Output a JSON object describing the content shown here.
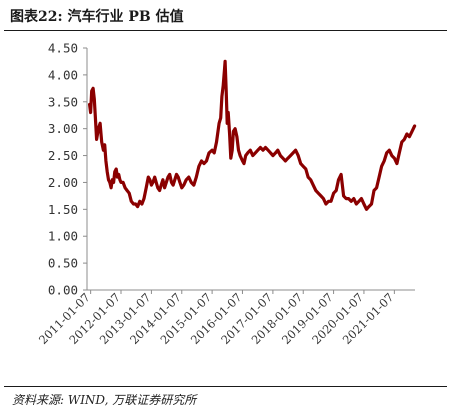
{
  "header": {
    "title": "图表22:  汽车行业 PB 估值"
  },
  "footer": {
    "source": "资料来源: WIND, 万联证券研究所"
  },
  "chart_data": {
    "type": "line",
    "title": "汽车行业 PB 估值",
    "xlabel": "",
    "ylabel": "",
    "ylim": [
      0,
      4.5
    ],
    "y_ticks": [
      "0.00",
      "0.50",
      "1.00",
      "1.50",
      "2.00",
      "2.50",
      "3.00",
      "3.50",
      "4.00",
      "4.50"
    ],
    "x_ticks": [
      "2011-01-07",
      "2012-01-07",
      "2013-01-07",
      "2014-01-07",
      "2015-01-07",
      "2016-01-07",
      "2017-01-07",
      "2018-01-07",
      "2019-01-07",
      "2020-01-07",
      "2021-01-07"
    ],
    "grid": false,
    "legend": "none",
    "line_color": "#8b0000",
    "series": [
      {
        "x": [
          "2010-12-25",
          "2011-01-07",
          "2011-01-20",
          "2011-02-05",
          "2011-02-20",
          "2011-03-05",
          "2011-03-20",
          "2011-04-10",
          "2011-05-01",
          "2011-05-20",
          "2011-06-10",
          "2011-06-25",
          "2011-07-10",
          "2011-07-25",
          "2011-08-10",
          "2011-08-25",
          "2011-09-10",
          "2011-09-25",
          "2011-10-10",
          "2011-10-25",
          "2011-11-10",
          "2011-11-25",
          "2011-12-10",
          "2011-12-25",
          "2012-01-07",
          "2012-02-01",
          "2012-02-25",
          "2012-03-20",
          "2012-04-15",
          "2012-05-10",
          "2012-06-05",
          "2012-07-01",
          "2012-07-25",
          "2012-08-20",
          "2012-09-15",
          "2012-10-10",
          "2012-11-05",
          "2012-12-01",
          "2012-12-20",
          "2013-01-07",
          "2013-01-25",
          "2013-02-15",
          "2013-03-05",
          "2013-03-25",
          "2013-04-15",
          "2013-05-05",
          "2013-05-25",
          "2013-06-15",
          "2013-07-05",
          "2013-07-25",
          "2013-08-15",
          "2013-09-05",
          "2013-09-25",
          "2013-10-15",
          "2013-11-05",
          "2013-11-25",
          "2013-12-15",
          "2014-01-07",
          "2014-02-01",
          "2014-03-01",
          "2014-04-01",
          "2014-05-01",
          "2014-06-01",
          "2014-07-01",
          "2014-08-01",
          "2014-09-01",
          "2014-10-01",
          "2014-11-01",
          "2014-12-01",
          "2015-01-07",
          "2015-02-01",
          "2015-03-01",
          "2015-04-01",
          "2015-04-20",
          "2015-05-05",
          "2015-05-20",
          "2015-06-05",
          "2015-06-12",
          "2015-06-25",
          "2015-07-08",
          "2015-07-20",
          "2015-08-05",
          "2015-08-20",
          "2015-09-05",
          "2015-09-20",
          "2015-10-10",
          "2015-11-01",
          "2015-11-20",
          "2015-12-10",
          "2016-01-07",
          "2016-01-25",
          "2016-02-15",
          "2016-03-10",
          "2016-04-10",
          "2016-05-10",
          "2016-06-10",
          "2016-07-10",
          "2016-08-10",
          "2016-09-10",
          "2016-10-10",
          "2016-11-10",
          "2016-12-10",
          "2017-01-07",
          "2017-02-07",
          "2017-03-07",
          "2017-04-07",
          "2017-05-07",
          "2017-06-07",
          "2017-07-07",
          "2017-08-07",
          "2017-09-07",
          "2017-10-07",
          "2017-11-07",
          "2017-12-07",
          "2018-01-07",
          "2018-02-07",
          "2018-03-07",
          "2018-04-07",
          "2018-05-07",
          "2018-06-07",
          "2018-07-07",
          "2018-08-07",
          "2018-09-07",
          "2018-10-07",
          "2018-11-07",
          "2018-12-07",
          "2019-01-07",
          "2019-02-07",
          "2019-03-07",
          "2019-04-07",
          "2019-05-07",
          "2019-06-07",
          "2019-07-07",
          "2019-08-07",
          "2019-09-07",
          "2019-10-07",
          "2019-11-07",
          "2019-12-07",
          "2020-01-07",
          "2020-02-07",
          "2020-03-07",
          "2020-04-07",
          "2020-05-07",
          "2020-06-07",
          "2020-07-07",
          "2020-08-07",
          "2020-09-07",
          "2020-10-07",
          "2020-11-07",
          "2020-12-07",
          "2021-01-07",
          "2021-02-07",
          "2021-03-07",
          "2021-04-07",
          "2021-05-07",
          "2021-06-07",
          "2021-07-07",
          "2021-08-07",
          "2021-09-07"
        ],
        "values": [
          3.45,
          3.3,
          3.7,
          3.75,
          3.55,
          3.2,
          2.8,
          3.0,
          3.1,
          2.75,
          2.6,
          2.7,
          2.4,
          2.2,
          2.05,
          2.0,
          1.9,
          2.05,
          2.0,
          2.2,
          2.25,
          2.1,
          2.15,
          2.05,
          2.0,
          2.0,
          1.9,
          1.85,
          1.8,
          1.65,
          1.6,
          1.6,
          1.55,
          1.65,
          1.6,
          1.7,
          1.9,
          2.1,
          2.05,
          1.95,
          2.0,
          2.1,
          2.0,
          1.9,
          1.85,
          1.95,
          2.05,
          1.9,
          2.0,
          2.1,
          2.15,
          2.0,
          1.95,
          2.05,
          2.15,
          2.1,
          2.0,
          1.9,
          1.95,
          2.05,
          2.1,
          2.0,
          1.95,
          2.1,
          2.3,
          2.4,
          2.35,
          2.4,
          2.55,
          2.6,
          2.55,
          2.75,
          3.1,
          3.2,
          3.6,
          3.8,
          4.1,
          4.25,
          3.7,
          3.1,
          3.3,
          2.9,
          2.45,
          2.6,
          2.95,
          3.0,
          2.85,
          2.6,
          2.5,
          2.4,
          2.35,
          2.5,
          2.55,
          2.6,
          2.5,
          2.55,
          2.6,
          2.65,
          2.6,
          2.65,
          2.6,
          2.55,
          2.5,
          2.55,
          2.6,
          2.5,
          2.45,
          2.4,
          2.45,
          2.5,
          2.55,
          2.6,
          2.5,
          2.35,
          2.3,
          2.25,
          2.1,
          2.05,
          1.95,
          1.85,
          1.8,
          1.75,
          1.7,
          1.6,
          1.65,
          1.65,
          1.8,
          1.85,
          2.05,
          2.15,
          1.75,
          1.7,
          1.7,
          1.65,
          1.7,
          1.6,
          1.65,
          1.7,
          1.6,
          1.5,
          1.55,
          1.6,
          1.85,
          1.9,
          2.1,
          2.3,
          2.4,
          2.55,
          2.6,
          2.5,
          2.45,
          2.35,
          2.55,
          2.75,
          2.8,
          2.9,
          2.85,
          2.95,
          3.05
        ]
      }
    ]
  }
}
